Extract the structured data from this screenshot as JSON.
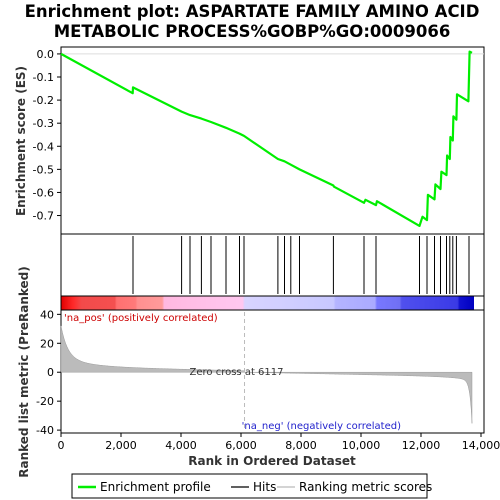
{
  "chart_data": {
    "type": "line",
    "title_lines": [
      "Enrichment plot: ASPARTATE FAMILY AMINO ACID",
      "METABOLIC PROCESS%GOBP%GO:0009066"
    ],
    "es_panel": {
      "ylabel": "Enrichment score (ES)",
      "ylim": [
        -0.78,
        0.03
      ],
      "yticks": [
        "0.0",
        "-0.1",
        "-0.2",
        "-0.3",
        "-0.4",
        "-0.5",
        "-0.6",
        "-0.7"
      ],
      "ytick_values": [
        0.0,
        -0.1,
        -0.2,
        -0.3,
        -0.4,
        -0.5,
        -0.6,
        -0.7
      ],
      "points": [
        [
          0,
          0.0
        ],
        [
          2390,
          -0.17
        ],
        [
          2400,
          -0.145
        ],
        [
          4020,
          -0.25
        ],
        [
          4300,
          -0.265
        ],
        [
          4680,
          -0.28
        ],
        [
          5000,
          -0.295
        ],
        [
          5500,
          -0.32
        ],
        [
          5950,
          -0.345
        ],
        [
          6100,
          -0.355
        ],
        [
          7230,
          -0.455
        ],
        [
          7450,
          -0.465
        ],
        [
          7660,
          -0.48
        ],
        [
          7950,
          -0.5
        ],
        [
          9080,
          -0.57
        ],
        [
          9100,
          -0.575
        ],
        [
          10100,
          -0.645
        ],
        [
          10150,
          -0.632
        ],
        [
          10500,
          -0.655
        ],
        [
          10530,
          -0.638
        ],
        [
          11950,
          -0.745
        ],
        [
          12050,
          -0.705
        ],
        [
          12200,
          -0.72
        ],
        [
          12230,
          -0.61
        ],
        [
          12450,
          -0.63
        ],
        [
          12480,
          -0.565
        ],
        [
          12650,
          -0.585
        ],
        [
          12680,
          -0.51
        ],
        [
          12850,
          -0.525
        ],
        [
          12870,
          -0.44
        ],
        [
          12960,
          -0.455
        ],
        [
          12980,
          -0.36
        ],
        [
          13060,
          -0.375
        ],
        [
          13080,
          -0.27
        ],
        [
          13180,
          -0.285
        ],
        [
          13200,
          -0.175
        ],
        [
          13580,
          -0.205
        ],
        [
          13620,
          0.01
        ],
        [
          13700,
          0.005
        ]
      ]
    },
    "hits": [
      2400,
      4020,
      4300,
      4680,
      5000,
      5500,
      5950,
      6100,
      7230,
      7450,
      7660,
      7950,
      9080,
      10100,
      10500,
      11950,
      12200,
      12450,
      12650,
      12850,
      12960,
      13060,
      13180,
      13600
    ],
    "metric_panel": {
      "ylabel": "Ranked list metric (PreRanked)",
      "xlabel": "Rank in Ordered Dataset",
      "ylim": [
        -42,
        43
      ],
      "yticks": [
        "40",
        "20",
        "0",
        "-20",
        "-40"
      ],
      "ytick_values": [
        40,
        20,
        0,
        -20,
        -40
      ],
      "xlim": [
        0,
        14100
      ],
      "xticks": [
        "0",
        "2,000",
        "4,000",
        "6,000",
        "8,000",
        "10,000",
        "12,000",
        "14,000"
      ],
      "xtick_values": [
        0,
        2000,
        4000,
        6000,
        8000,
        10000,
        12000,
        14000
      ],
      "n_genes": 13700,
      "zero_cross": 6117,
      "zero_cross_label": "Zero cross at 6117",
      "pos_label": "'na_pos' (positively correlated)",
      "neg_label": "'na_neg' (negatively correlated)"
    },
    "legend": {
      "items": [
        "Enrichment profile",
        "Hits",
        "Ranking metric scores"
      ],
      "colors": [
        "#00ee00",
        "#000000",
        "#bbbbbb"
      ]
    },
    "colors": {
      "es_line": "#00ee00",
      "pos_label": "#cc0000",
      "neg_label": "#2222cc",
      "zero_line": "#bbbbbb",
      "metric_fill": "#bbbbbb"
    }
  }
}
